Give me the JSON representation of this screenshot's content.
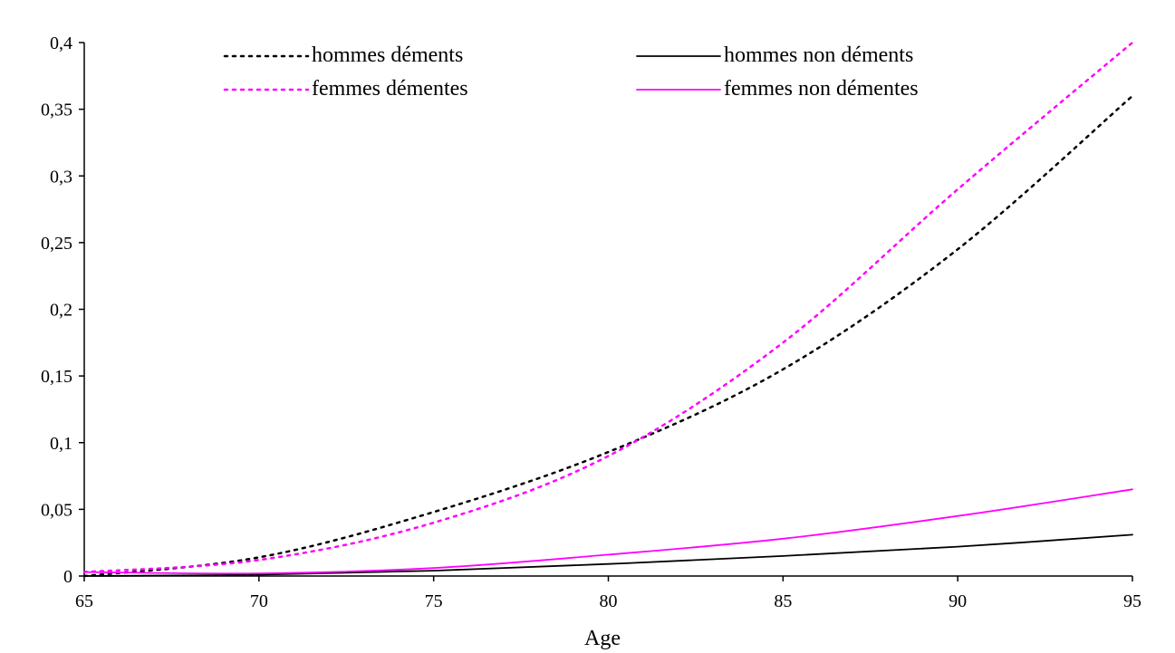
{
  "chart_data": {
    "type": "line",
    "title": "",
    "xlabel": "Age",
    "ylabel": "",
    "xlim": [
      65,
      95
    ],
    "ylim": [
      0,
      0.4
    ],
    "x_ticks": [
      65,
      70,
      75,
      80,
      85,
      90,
      95
    ],
    "x_tick_labels": [
      "65",
      "70",
      "75",
      "80",
      "85",
      "90",
      "95"
    ],
    "y_ticks": [
      0,
      0.05,
      0.1,
      0.15,
      0.2,
      0.25,
      0.3,
      0.35,
      0.4
    ],
    "y_tick_labels": [
      "0",
      "0,05",
      "0,1",
      "0,15",
      "0,2",
      "0,25",
      "0,3",
      "0,35",
      "0,4"
    ],
    "grid": false,
    "legend_position": "top",
    "x": [
      65,
      70,
      75,
      80,
      85,
      90,
      95
    ],
    "series": [
      {
        "name": "hommes déments",
        "color": "#000000",
        "dash": "dotted",
        "values": [
          0,
          0.014,
          0.048,
          0.093,
          0.155,
          0.245,
          0.36
        ]
      },
      {
        "name": "hommes non déments",
        "color": "#000000",
        "dash": "solid",
        "values": [
          0,
          0.001,
          0.004,
          0.009,
          0.015,
          0.022,
          0.031
        ]
      },
      {
        "name": "femmes démentes",
        "color": "#ff00ff",
        "dash": "dotted",
        "values": [
          0.003,
          0.012,
          0.04,
          0.09,
          0.175,
          0.29,
          0.4
        ]
      },
      {
        "name": "femmes non démentes",
        "color": "#ff00ff",
        "dash": "solid",
        "values": [
          0.003,
          0.002,
          0.006,
          0.016,
          0.028,
          0.045,
          0.065
        ]
      }
    ]
  }
}
